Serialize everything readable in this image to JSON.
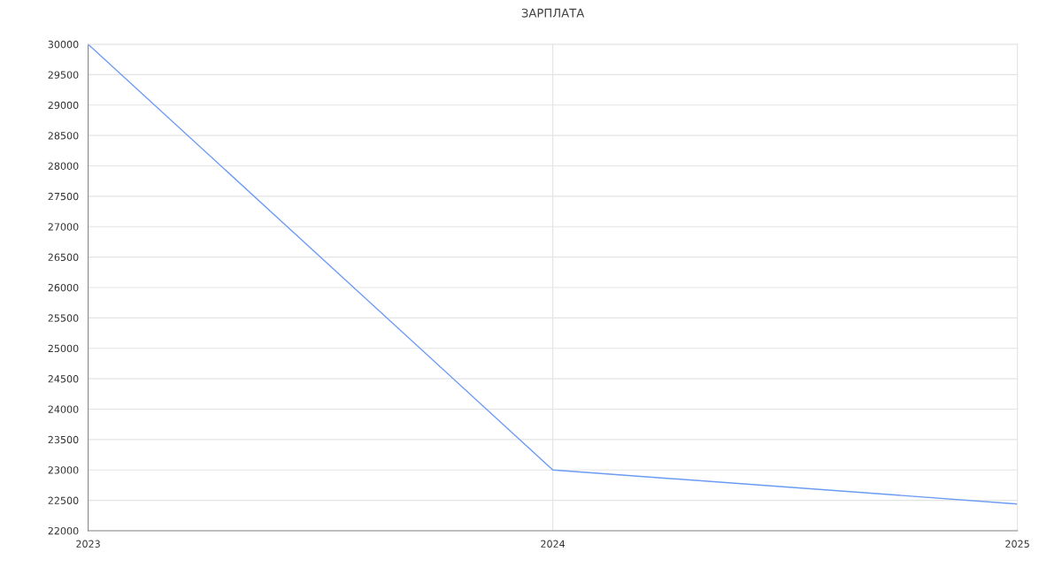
{
  "chart_data": {
    "type": "line",
    "title": "ЗАРПЛАТА",
    "x": [
      2023,
      2024,
      2025
    ],
    "series": [
      {
        "color": "#6b9bf2",
        "values": [
          30000,
          23000,
          22440
        ]
      }
    ],
    "xlim": [
      2023,
      2025
    ],
    "xticks": [
      2023,
      2024,
      2025
    ],
    "ylim": [
      22000,
      30000
    ],
    "yticks": [
      22000,
      22500,
      23000,
      23500,
      24000,
      24500,
      25000,
      25500,
      26000,
      26500,
      27000,
      27500,
      28000,
      28500,
      29000,
      29500,
      30000
    ],
    "grid": true,
    "marker": "none",
    "line_style": "solid"
  }
}
